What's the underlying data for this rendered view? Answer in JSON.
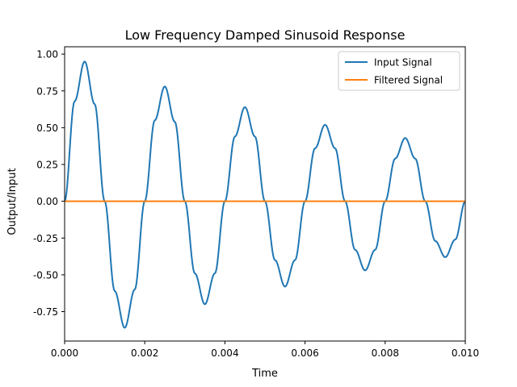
{
  "chart_data": {
    "type": "line",
    "title": "Low Frequency Damped Sinusoid Response",
    "xlabel": "Time",
    "ylabel": "Output/Input",
    "xlim": [
      0.0,
      0.01
    ],
    "ylim": [
      -0.95,
      1.05
    ],
    "x_ticks": [
      "0.000",
      "0.002",
      "0.004",
      "0.006",
      "0.008",
      "0.010"
    ],
    "y_ticks": [
      "-0.75",
      "-0.50",
      "-0.25",
      "0.00",
      "0.25",
      "0.50",
      "0.75",
      "1.00"
    ],
    "grid": false,
    "legend_position": "upper right",
    "series": [
      {
        "name": "Input Signal",
        "color": "#1f77b4",
        "x": [
          0.0,
          0.00025,
          0.0005,
          0.00075,
          0.001,
          0.00125,
          0.0015,
          0.00175,
          0.002,
          0.00225,
          0.0025,
          0.00275,
          0.003,
          0.00325,
          0.0035,
          0.00375,
          0.004,
          0.00425,
          0.0045,
          0.00475,
          0.005,
          0.00525,
          0.0055,
          0.00575,
          0.006,
          0.00625,
          0.0065,
          0.00675,
          0.007,
          0.00725,
          0.0075,
          0.00775,
          0.008,
          0.00825,
          0.0085,
          0.00875,
          0.009,
          0.00925,
          0.0095,
          0.00975,
          0.01
        ],
        "y": [
          0.0,
          0.68,
          0.95,
          0.66,
          0.0,
          -0.61,
          -0.86,
          -0.6,
          0.0,
          0.55,
          0.78,
          0.54,
          0.0,
          -0.49,
          -0.7,
          -0.49,
          0.0,
          0.44,
          0.64,
          0.44,
          0.0,
          -0.4,
          -0.58,
          -0.4,
          0.0,
          0.36,
          0.52,
          0.36,
          0.0,
          -0.33,
          -0.47,
          -0.33,
          0.0,
          0.29,
          0.43,
          0.29,
          0.0,
          -0.27,
          -0.38,
          -0.26,
          0.0
        ]
      },
      {
        "name": "Filtered Signal",
        "color": "#ff7f0e",
        "x": [
          0.0,
          0.01
        ],
        "y": [
          0.0,
          0.0
        ]
      }
    ]
  }
}
